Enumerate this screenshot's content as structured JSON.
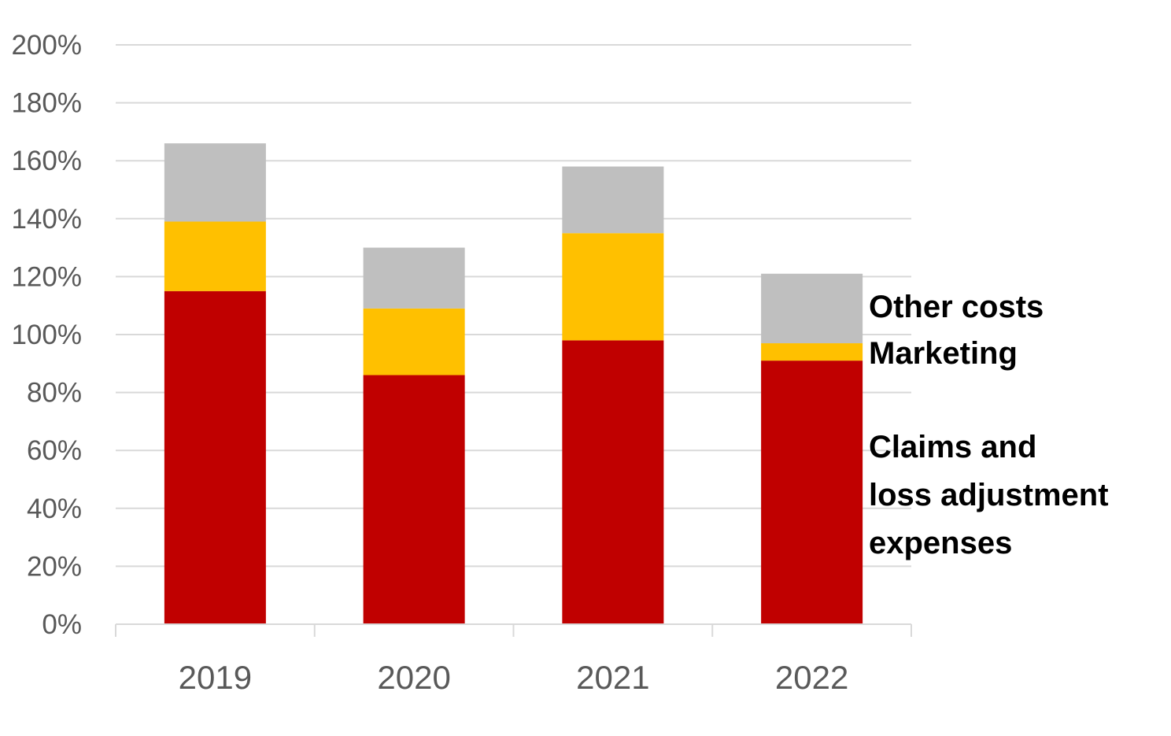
{
  "chart_data": {
    "type": "bar",
    "stacked": true,
    "title": "",
    "xlabel": "",
    "ylabel": "",
    "categories": [
      "2019",
      "2020",
      "2021",
      "2022"
    ],
    "ylim": [
      0,
      200
    ],
    "yticks": [
      0,
      20,
      40,
      60,
      80,
      100,
      120,
      140,
      160,
      180,
      200
    ],
    "ytick_labels": [
      "0%",
      "20%",
      "40%",
      "60%",
      "80%",
      "100%",
      "120%",
      "140%",
      "160%",
      "180%",
      "200%"
    ],
    "grid": true,
    "series": [
      {
        "name": "Claims and loss adjustment expenses",
        "label_lines": [
          "Claims and",
          "loss adjustment",
          "expenses"
        ],
        "color": "#c00000",
        "values": [
          115,
          86,
          98,
          91
        ]
      },
      {
        "name": "Marketing",
        "label_lines": [
          "Marketing"
        ],
        "color": "#ffc000",
        "values": [
          24,
          23,
          37,
          6
        ]
      },
      {
        "name": "Other costs",
        "label_lines": [
          "Other costs"
        ],
        "color": "#bfbfbf",
        "values": [
          27,
          21,
          23,
          24
        ]
      }
    ],
    "legend_placement": "right, labels beside last bar"
  }
}
